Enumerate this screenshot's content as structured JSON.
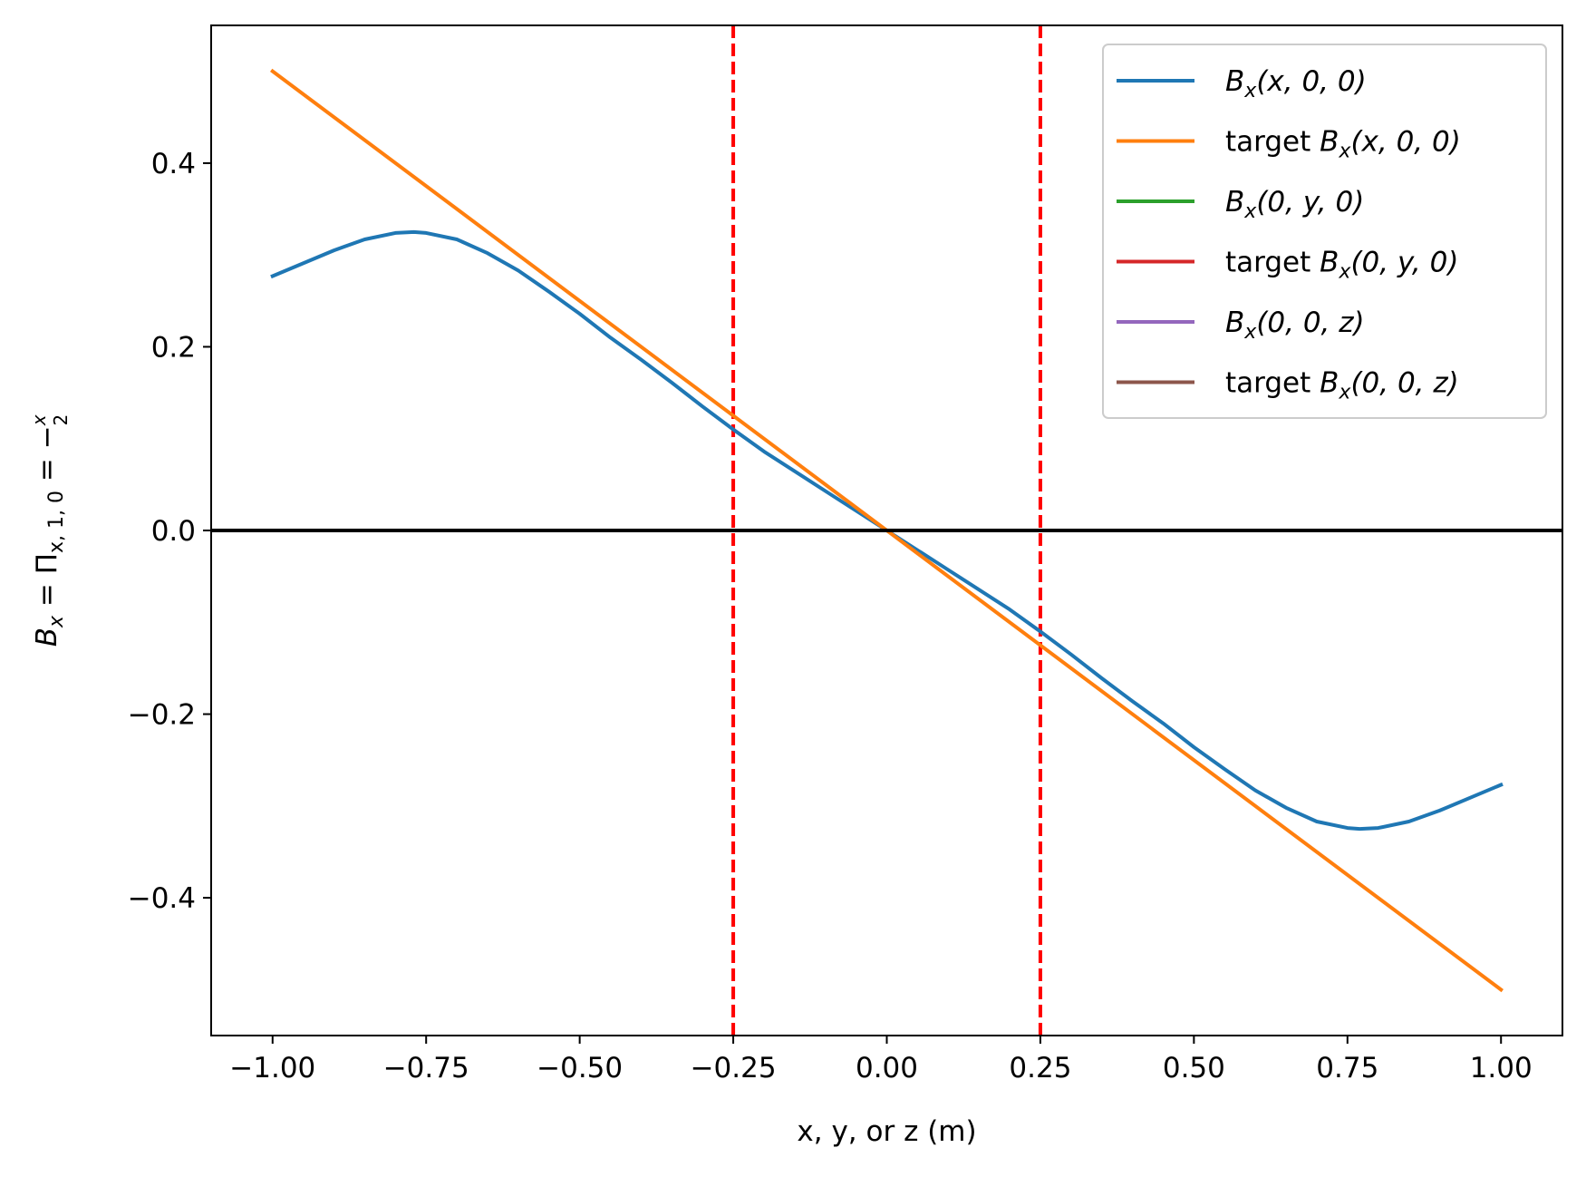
{
  "chart_data": {
    "type": "line",
    "xlabel": "x, y, or z (m)",
    "ylabel_parts": {
      "lhs": "B",
      "lhs_sub": "x",
      "eq1": " = ",
      "pi": "Π",
      "pi_sub": "x, 1, 0",
      "eq2": " = −",
      "frac_num": "x",
      "frac_den": "2"
    },
    "xlim": [
      -1.1,
      1.1
    ],
    "ylim": [
      -0.55,
      0.55
    ],
    "x_ticks": [
      -1.0,
      -0.75,
      -0.5,
      -0.25,
      0.0,
      0.25,
      0.5,
      0.75,
      1.0
    ],
    "x_tick_labels": [
      "−1.00",
      "−0.75",
      "−0.50",
      "−0.25",
      "0.00",
      "0.25",
      "0.50",
      "0.75",
      "1.00"
    ],
    "y_ticks": [
      -0.4,
      -0.2,
      0.0,
      0.2,
      0.4
    ],
    "y_tick_labels": [
      "−0.4",
      "−0.2",
      "0.0",
      "0.2",
      "0.4"
    ],
    "grid": false,
    "legend_position": "top-right",
    "series": [
      {
        "name": "B_x(x, 0, 0)",
        "color": "#1f77b4",
        "x": [
          -1.0,
          -0.9,
          -0.85,
          -0.8,
          -0.77,
          -0.75,
          -0.7,
          -0.65,
          -0.6,
          -0.55,
          -0.5,
          -0.45,
          -0.4,
          -0.35,
          -0.3,
          -0.25,
          -0.2,
          -0.1,
          0.0,
          0.1,
          0.2,
          0.25,
          0.3,
          0.35,
          0.4,
          0.45,
          0.5,
          0.55,
          0.6,
          0.65,
          0.7,
          0.75,
          0.77,
          0.8,
          0.85,
          0.9,
          1.0
        ],
        "y": [
          0.277,
          0.305,
          0.317,
          0.324,
          0.325,
          0.324,
          0.317,
          0.302,
          0.283,
          0.26,
          0.236,
          0.21,
          0.186,
          0.161,
          0.135,
          0.11,
          0.086,
          0.043,
          0.0,
          -0.043,
          -0.086,
          -0.11,
          -0.135,
          -0.161,
          -0.186,
          -0.21,
          -0.236,
          -0.26,
          -0.283,
          -0.302,
          -0.317,
          -0.324,
          -0.325,
          -0.324,
          -0.317,
          -0.305,
          -0.277
        ]
      },
      {
        "name": "target B_x(x, 0, 0)",
        "color": "#ff7f0e",
        "x": [
          -1.0,
          1.0
        ],
        "y": [
          0.5,
          -0.5
        ]
      },
      {
        "name": "B_x(0, y, 0)",
        "color": "#2ca02c",
        "x": [
          -1.0,
          1.0
        ],
        "y": [
          0.0,
          0.0
        ]
      },
      {
        "name": "target B_x(0, y, 0)",
        "color": "#d62728",
        "x": [
          -1.0,
          1.0
        ],
        "y": [
          0.0,
          0.0
        ]
      },
      {
        "name": "B_x(0, 0, z)",
        "color": "#9467bd",
        "x": [
          -1.0,
          1.0
        ],
        "y": [
          0.0,
          0.0
        ]
      },
      {
        "name": "target B_x(0, 0, z)",
        "color": "#8c564b",
        "x": [
          -1.0,
          1.0
        ],
        "y": [
          0.0,
          0.0
        ]
      }
    ],
    "legend": [
      {
        "prefix": "",
        "func": "B",
        "sub": "x",
        "args": "(x, 0, 0)",
        "color": "#1f77b4"
      },
      {
        "prefix": "target ",
        "func": "B",
        "sub": "x",
        "args": "(x, 0, 0)",
        "color": "#ff7f0e"
      },
      {
        "prefix": "",
        "func": "B",
        "sub": "x",
        "args": "(0, y, 0)",
        "color": "#2ca02c"
      },
      {
        "prefix": "target ",
        "func": "B",
        "sub": "x",
        "args": "(0, y, 0)",
        "color": "#d62728"
      },
      {
        "prefix": "",
        "func": "B",
        "sub": "x",
        "args": "(0, 0, z)",
        "color": "#9467bd"
      },
      {
        "prefix": "target ",
        "func": "B",
        "sub": "x",
        "args": "(0, 0, z)",
        "color": "#8c564b"
      }
    ],
    "reference_lines": {
      "horizontal": [
        {
          "y": 0.0,
          "color": "#000000",
          "style": "solid"
        }
      ],
      "vertical": [
        {
          "x": -0.25,
          "color": "#ff0000",
          "style": "dashed"
        },
        {
          "x": 0.25,
          "color": "#ff0000",
          "style": "dashed"
        },
        {
          "x": -1.1,
          "color": "#000000",
          "style": "dashed"
        },
        {
          "x": 1.1,
          "color": "#000000",
          "style": "dashed"
        }
      ]
    }
  }
}
